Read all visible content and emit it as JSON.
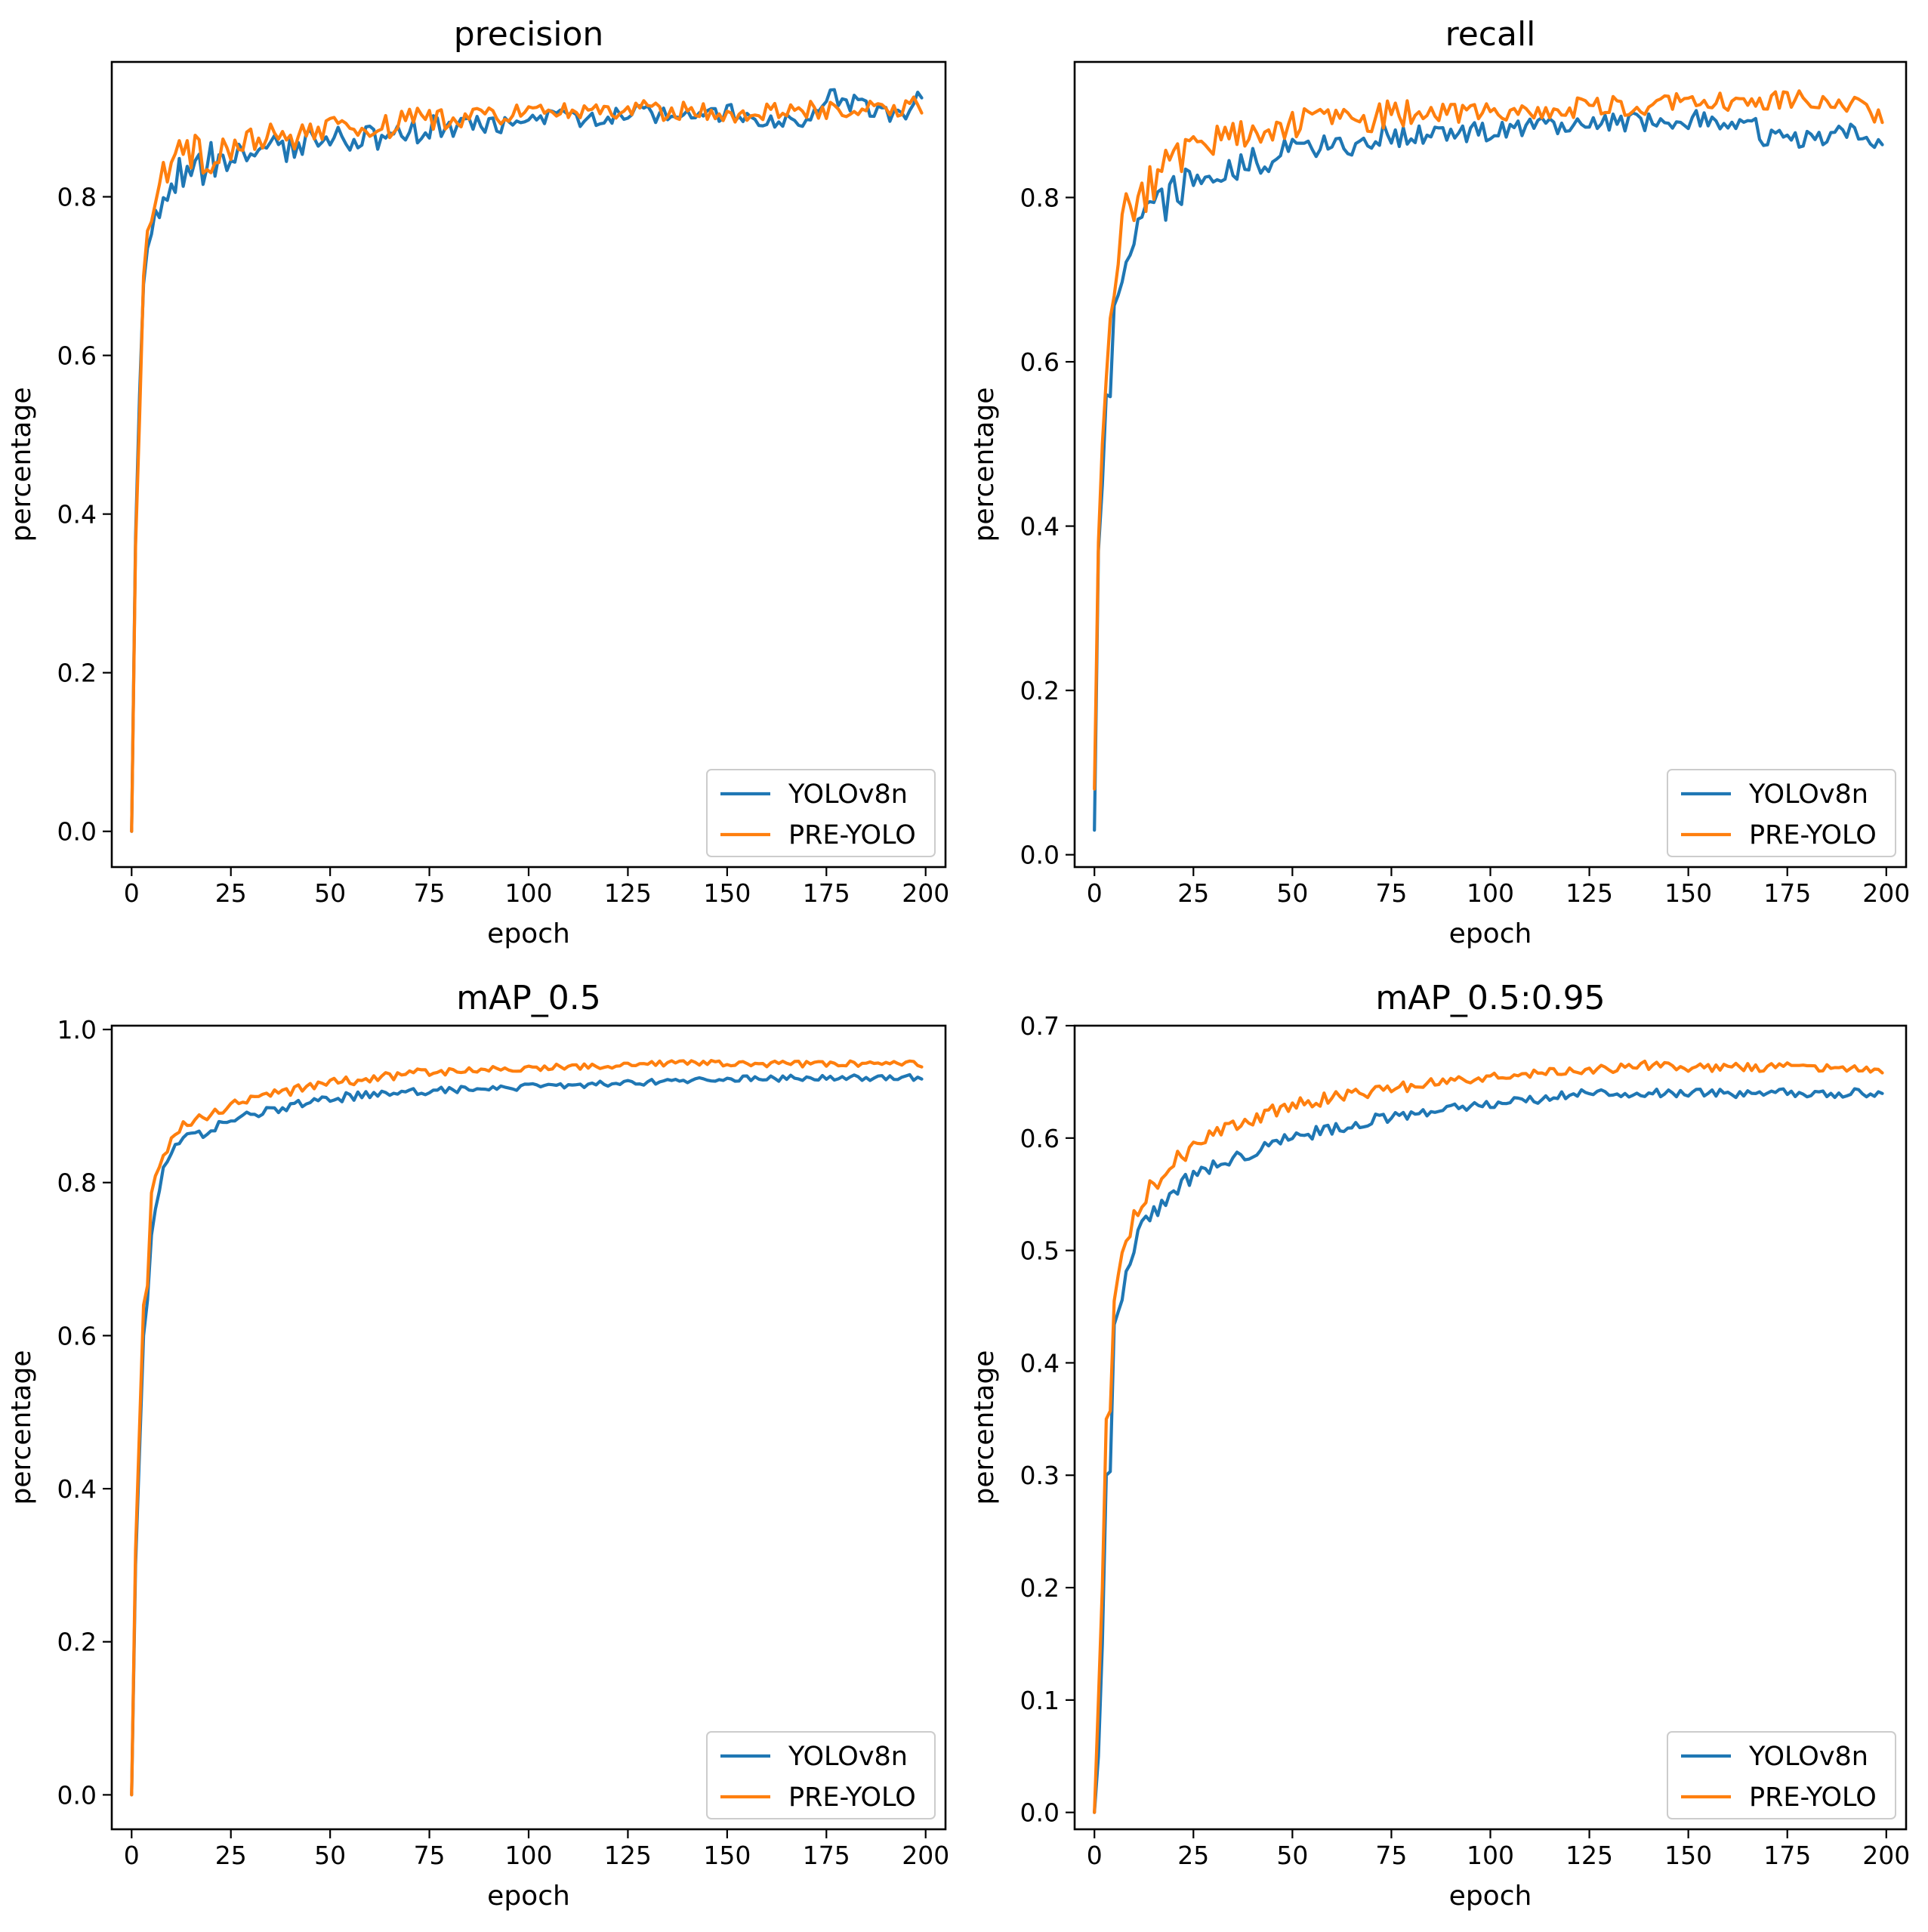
{
  "figure": {
    "colors": {
      "YOLOv8n": "#1f77b4",
      "PRE-YOLO": "#ff7f0e"
    },
    "legend_placement": "lower-right",
    "grid": false
  },
  "chart_data": [
    {
      "type": "line",
      "title": "precision",
      "xlabel": "epoch",
      "ylabel": "percentage",
      "xlim": [
        -5,
        205
      ],
      "ylim": [
        -0.045,
        0.97
      ],
      "xticks": [
        0,
        25,
        50,
        75,
        100,
        125,
        150,
        175,
        200
      ],
      "yticks": [
        0.0,
        0.2,
        0.4,
        0.6,
        0.8
      ],
      "ytick_labels": [
        "0.0",
        "0.2",
        "0.4",
        "0.6",
        "0.8"
      ],
      "legend_position": "lower-right",
      "noise": 0.012,
      "series": [
        {
          "name": "YOLOv8n",
          "color": "#1f77b4",
          "x": [
            0,
            1,
            2,
            3,
            5,
            8,
            12,
            20,
            30,
            50,
            75,
            100,
            125,
            150,
            170,
            175,
            180,
            190,
            195,
            199
          ],
          "y": [
            0.0,
            0.37,
            0.55,
            0.69,
            0.74,
            0.8,
            0.83,
            0.845,
            0.855,
            0.87,
            0.885,
            0.895,
            0.905,
            0.905,
            0.895,
            0.93,
            0.92,
            0.905,
            0.905,
            0.93
          ]
        },
        {
          "name": "PRE-YOLO",
          "color": "#ff7f0e",
          "x": [
            0,
            1,
            2,
            3,
            5,
            8,
            12,
            20,
            30,
            50,
            75,
            100,
            125,
            150,
            175,
            199
          ],
          "y": [
            0.0,
            0.36,
            0.52,
            0.7,
            0.78,
            0.82,
            0.85,
            0.855,
            0.87,
            0.885,
            0.895,
            0.905,
            0.91,
            0.905,
            0.91,
            0.915
          ]
        }
      ]
    },
    {
      "type": "line",
      "title": "recall",
      "xlabel": "epoch",
      "ylabel": "percentage",
      "xlim": [
        -5,
        205
      ],
      "ylim": [
        -0.015,
        0.965
      ],
      "xticks": [
        0,
        25,
        50,
        75,
        100,
        125,
        150,
        175,
        200
      ],
      "yticks": [
        0.0,
        0.2,
        0.4,
        0.6,
        0.8
      ],
      "ytick_labels": [
        "0.0",
        "0.2",
        "0.4",
        "0.6",
        "0.8"
      ],
      "legend_position": "lower-right",
      "noise": 0.012,
      "series": [
        {
          "name": "YOLOv8n",
          "color": "#1f77b4",
          "x": [
            0,
            1,
            2,
            3,
            4,
            5,
            8,
            12,
            20,
            30,
            50,
            75,
            100,
            125,
            150,
            165,
            170,
            180,
            190,
            195,
            199
          ],
          "y": [
            0.03,
            0.37,
            0.45,
            0.56,
            0.57,
            0.66,
            0.73,
            0.78,
            0.8,
            0.83,
            0.855,
            0.875,
            0.88,
            0.89,
            0.895,
            0.895,
            0.87,
            0.87,
            0.885,
            0.87,
            0.865
          ]
        },
        {
          "name": "PRE-YOLO",
          "color": "#ff7f0e",
          "x": [
            0,
            1,
            2,
            3,
            5,
            8,
            12,
            20,
            30,
            50,
            75,
            100,
            125,
            150,
            175,
            190,
            199
          ],
          "y": [
            0.08,
            0.38,
            0.5,
            0.58,
            0.7,
            0.78,
            0.8,
            0.85,
            0.87,
            0.89,
            0.9,
            0.905,
            0.91,
            0.915,
            0.92,
            0.915,
            0.9
          ]
        }
      ]
    },
    {
      "type": "line",
      "title": "mAP_0.5",
      "xlabel": "epoch",
      "ylabel": "percentage",
      "xlim": [
        -5,
        205
      ],
      "ylim": [
        -0.045,
        1.005
      ],
      "xticks": [
        0,
        25,
        50,
        75,
        100,
        125,
        150,
        175,
        200
      ],
      "yticks": [
        0.0,
        0.2,
        0.4,
        0.6,
        0.8,
        1.0
      ],
      "ytick_labels": [
        "0.0",
        "0.2",
        "0.4",
        "0.6",
        "0.8",
        "1.0"
      ],
      "legend_position": "lower-right",
      "noise": 0.004,
      "series": [
        {
          "name": "YOLOv8n",
          "color": "#1f77b4",
          "x": [
            0,
            1,
            2,
            3,
            4,
            5,
            8,
            12,
            20,
            30,
            50,
            75,
            100,
            125,
            150,
            175,
            199
          ],
          "y": [
            0.0,
            0.3,
            0.45,
            0.6,
            0.65,
            0.74,
            0.82,
            0.85,
            0.87,
            0.89,
            0.91,
            0.92,
            0.925,
            0.93,
            0.935,
            0.937,
            0.937
          ]
        },
        {
          "name": "PRE-YOLO",
          "color": "#ff7f0e",
          "x": [
            0,
            1,
            2,
            3,
            4,
            5,
            8,
            12,
            20,
            30,
            50,
            75,
            100,
            125,
            140,
            150,
            175,
            199
          ],
          "y": [
            0.0,
            0.32,
            0.48,
            0.64,
            0.66,
            0.79,
            0.84,
            0.87,
            0.89,
            0.91,
            0.93,
            0.945,
            0.95,
            0.953,
            0.958,
            0.955,
            0.955,
            0.955
          ]
        }
      ]
    },
    {
      "type": "line",
      "title": "mAP_0.5:0.95",
      "xlabel": "epoch",
      "ylabel": "percentage",
      "xlim": [
        -5,
        205
      ],
      "ylim": [
        -0.015,
        0.7
      ],
      "xticks": [
        0,
        25,
        50,
        75,
        100,
        125,
        150,
        175,
        200
      ],
      "yticks": [
        0.0,
        0.1,
        0.2,
        0.3,
        0.4,
        0.5,
        0.6,
        0.7
      ],
      "ytick_labels": [
        "0.0",
        "0.1",
        "0.2",
        "0.3",
        "0.4",
        "0.5",
        "0.6",
        "0.7"
      ],
      "legend_position": "lower-right",
      "noise": 0.004,
      "series": [
        {
          "name": "YOLOv8n",
          "color": "#1f77b4",
          "x": [
            0,
            1,
            2,
            3,
            4,
            5,
            8,
            12,
            20,
            30,
            50,
            75,
            100,
            125,
            150,
            175,
            199
          ],
          "y": [
            0.0,
            0.05,
            0.15,
            0.3,
            0.31,
            0.43,
            0.48,
            0.52,
            0.555,
            0.575,
            0.6,
            0.62,
            0.63,
            0.64,
            0.64,
            0.64,
            0.64
          ]
        },
        {
          "name": "PRE-YOLO",
          "color": "#ff7f0e",
          "x": [
            0,
            1,
            2,
            3,
            4,
            5,
            8,
            12,
            20,
            30,
            50,
            75,
            100,
            125,
            140,
            150,
            175,
            199
          ],
          "y": [
            0.0,
            0.1,
            0.2,
            0.35,
            0.36,
            0.46,
            0.51,
            0.545,
            0.58,
            0.605,
            0.63,
            0.645,
            0.655,
            0.66,
            0.665,
            0.662,
            0.663,
            0.66
          ]
        }
      ]
    }
  ]
}
